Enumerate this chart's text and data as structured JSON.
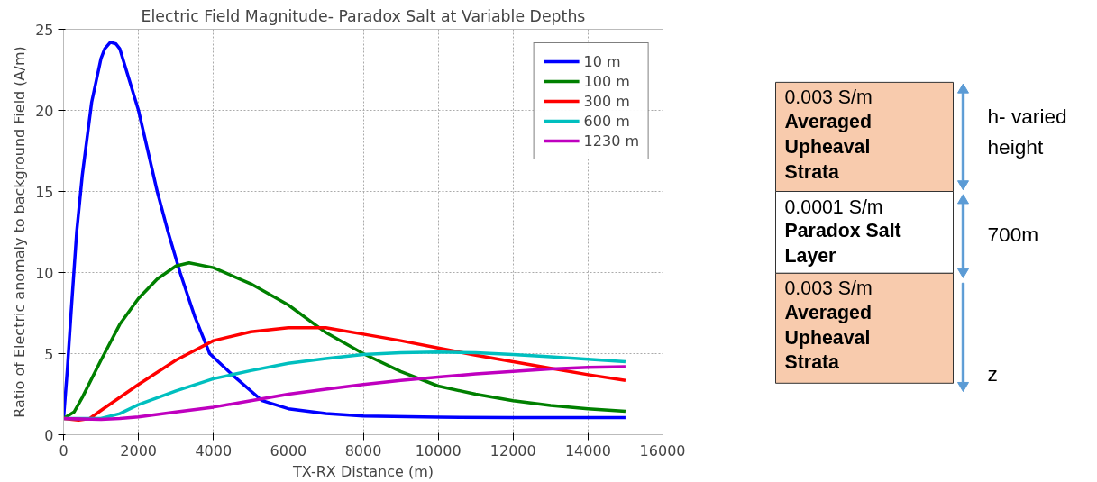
{
  "chart_data": [
    {
      "type": "line",
      "title": "Electric Field Magnitude- Paradox Salt at Variable Depths",
      "xlabel": "TX-RX Distance (m)",
      "ylabel": "Ratio of Electric anomaly to background Field (A/m)",
      "xlim": [
        0,
        16000
      ],
      "ylim": [
        0,
        25
      ],
      "xticks": [
        0,
        2000,
        4000,
        6000,
        8000,
        10000,
        12000,
        14000,
        16000
      ],
      "yticks": [
        0,
        5,
        10,
        15,
        20,
        25
      ],
      "grid": true,
      "legend": "top right",
      "line_style": "solid",
      "marker": "none",
      "series": [
        {
          "name": "10 m",
          "color": "#0000ff",
          "x": [
            0,
            100,
            200,
            350,
            500,
            750,
            1000,
            1100,
            1250,
            1400,
            1500,
            2000,
            2500,
            2790,
            3110,
            3500,
            3900,
            4500,
            5300,
            6000,
            7000,
            8000,
            10000,
            12000,
            15000
          ],
          "values": [
            1,
            4,
            7.5,
            12.5,
            16,
            20.5,
            23.2,
            23.8,
            24.2,
            24.1,
            23.8,
            20,
            15,
            12.5,
            10,
            7.3,
            5,
            3.7,
            2.1,
            1.6,
            1.3,
            1.15,
            1.08,
            1.05,
            1.05
          ]
        },
        {
          "name": "100 m",
          "color": "#008000",
          "x": [
            0,
            280,
            500,
            1000,
            1500,
            2000,
            2500,
            3000,
            3350,
            4000,
            5000,
            6000,
            7000,
            8000,
            9000,
            10000,
            11000,
            12000,
            13000,
            14000,
            15000
          ],
          "values": [
            1,
            1.4,
            2.3,
            4.6,
            6.8,
            8.4,
            9.6,
            10.4,
            10.6,
            10.3,
            9.3,
            8,
            6.3,
            5,
            3.9,
            3,
            2.5,
            2.1,
            1.8,
            1.6,
            1.45
          ]
        },
        {
          "name": "300 m",
          "color": "#ff0000",
          "x": [
            0,
            400,
            700,
            1000,
            2000,
            3000,
            4000,
            5000,
            6000,
            7000,
            8000,
            9000,
            10000,
            11000,
            12000,
            13000,
            14000,
            15000
          ],
          "values": [
            1,
            0.9,
            1,
            1.5,
            3.1,
            4.6,
            5.8,
            6.35,
            6.6,
            6.6,
            6.2,
            5.8,
            5.35,
            4.9,
            4.5,
            4.1,
            3.7,
            3.35
          ]
        },
        {
          "name": "600 m",
          "color": "#00bfbf",
          "x": [
            0,
            1000,
            1500,
            2000,
            3000,
            4000,
            5000,
            6000,
            7000,
            8000,
            9000,
            10000,
            11000,
            12000,
            13000,
            14000,
            15000
          ],
          "values": [
            1,
            1,
            1.3,
            1.85,
            2.7,
            3.45,
            3.95,
            4.4,
            4.7,
            4.95,
            5.05,
            5.1,
            5.05,
            4.95,
            4.8,
            4.65,
            4.5
          ]
        },
        {
          "name": "1230 m",
          "color": "#bf00bf",
          "x": [
            0,
            1000,
            1500,
            2000,
            3000,
            4000,
            5000,
            6000,
            7000,
            8000,
            9000,
            10000,
            11000,
            12000,
            13000,
            14000,
            15000
          ],
          "values": [
            1,
            0.95,
            1,
            1.1,
            1.4,
            1.7,
            2.1,
            2.5,
            2.8,
            3.1,
            3.35,
            3.55,
            3.75,
            3.9,
            4.05,
            4.15,
            4.2
          ]
        }
      ]
    },
    {
      "type": "other",
      "colors": [
        "#f8cbad",
        "#ffffff",
        "#f8cbad"
      ],
      "annotations": [
        "0.003 S/m",
        "Averaged\nUpheaval\nStrata",
        "0.0001 S/m",
        "Paradox Salt\nLayer",
        "0.003 S/m",
        "Averaged\nUpheaval\nStrata",
        "h- varied\nheight",
        "700m",
        "z"
      ]
    }
  ]
}
